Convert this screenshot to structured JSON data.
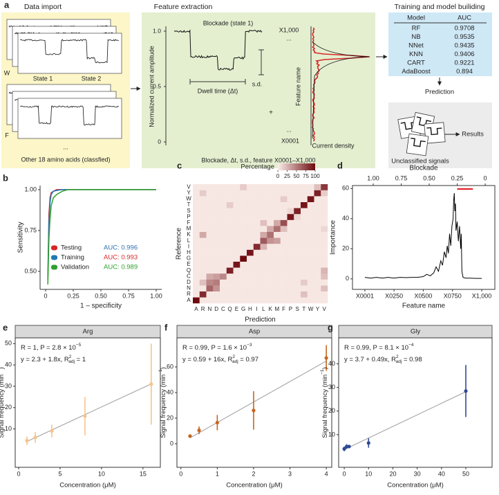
{
  "panel_a": {
    "label": "a",
    "data_import": {
      "title": "Data import",
      "state_1": "State 1",
      "state_2": "State 2",
      "w": "W",
      "f": "F",
      "ellipsis": "...",
      "other": "Other 18 amino acids (classfied)"
    },
    "feature_extraction": {
      "title": "Feature extraction",
      "y_label": "Normalized current amplitude",
      "yticks": [
        "1.0",
        "0.5",
        "0"
      ],
      "blockade": "Blockade (state 1)",
      "sd": "s.d.",
      "dwell": "Dwell time (Δt)",
      "plus": "+",
      "x_top": "X1,000",
      "dots_top": "...",
      "feature_name": "Feature name",
      "dots_bottom": "...",
      "x_bottom": "X0001",
      "current_density": "Current density",
      "caption": "Blockade, Δt, s.d., feature X0001–X1,000"
    },
    "training": {
      "title": "Training and model builiding",
      "table": {
        "header": [
          "Model",
          "AUC"
        ],
        "rows": [
          [
            "RF",
            "0.9708"
          ],
          [
            "NB",
            "0.9535"
          ],
          [
            "NNet",
            "0.9435"
          ],
          [
            "KNN",
            "0.9406"
          ],
          [
            "CART",
            "0.9221"
          ],
          [
            "AdaBoost",
            "0.894"
          ]
        ]
      },
      "prediction": "Prediction",
      "unclassified": "Unclassified signals",
      "results": "Results"
    }
  },
  "chart_data": [
    {
      "type": "line",
      "label": "b",
      "xlabel": "1 – specificity",
      "ylabel": "Sensitivity",
      "x": [
        0.02,
        0.03,
        0.04,
        0.05,
        0.07,
        0.1,
        0.15,
        0.2,
        0.25,
        1.0
      ],
      "series": [
        {
          "name": "Testing",
          "color": "#d62728",
          "auc": "AUC: 0.996",
          "auc_color": "#2f6fb0",
          "values": [
            0.45,
            0.85,
            0.95,
            0.98,
            0.99,
            1,
            1,
            1,
            1,
            1
          ]
        },
        {
          "name": "Training",
          "color": "#1f77b4",
          "auc": "AUC: 0.993",
          "auc_color": "#d62728",
          "values": [
            0.45,
            0.8,
            0.92,
            0.97,
            0.99,
            0.995,
            1,
            1,
            1,
            1
          ]
        },
        {
          "name": "Validation",
          "color": "#2ca02c",
          "auc": "AUC: 0.989",
          "auc_color": "#2ca02c",
          "values": [
            0.42,
            0.7,
            0.82,
            0.9,
            0.95,
            0.97,
            0.99,
            1,
            1,
            1
          ]
        }
      ],
      "xlim": [
        -0.05,
        1.05
      ],
      "ylim": [
        0.39,
        1.025
      ],
      "xticks": [
        0,
        0.25,
        {
          "value": 0.5,
          "label": "0.50"
        },
        0.75,
        {
          "value": 1,
          "label": "1.00"
        }
      ],
      "yticks": [
        {
          "value": 0.5,
          "label": "0.50"
        },
        0.75,
        {
          "value": 1,
          "label": "1.00"
        }
      ]
    },
    {
      "type": "heatmap",
      "label": "c",
      "xlabel": "Prediction",
      "ylabel": "Reference",
      "colorbar_label": "Percentage",
      "categories": [
        "A",
        "R",
        "N",
        "D",
        "C",
        "Q",
        "E",
        "G",
        "H",
        "I",
        "L",
        "K",
        "M",
        "F",
        "P",
        "S",
        "T",
        "W",
        "Y",
        "V"
      ],
      "values": [
        [
          100,
          3,
          3,
          3,
          3,
          3,
          3,
          3,
          3,
          3,
          3,
          3,
          3,
          3,
          3,
          3,
          3,
          3,
          3,
          3
        ],
        [
          3,
          85,
          3,
          3,
          3,
          3,
          3,
          3,
          3,
          3,
          3,
          3,
          3,
          3,
          3,
          3,
          20,
          3,
          3,
          3
        ],
        [
          3,
          3,
          60,
          40,
          3,
          3,
          3,
          3,
          3,
          3,
          3,
          3,
          3,
          3,
          3,
          3,
          3,
          3,
          3,
          20
        ],
        [
          3,
          20,
          45,
          50,
          3,
          3,
          3,
          3,
          3,
          3,
          3,
          3,
          3,
          3,
          3,
          3,
          15,
          3,
          3,
          3
        ],
        [
          3,
          3,
          30,
          35,
          45,
          3,
          3,
          3,
          3,
          3,
          3,
          3,
          3,
          3,
          3,
          3,
          3,
          3,
          3,
          20
        ],
        [
          3,
          3,
          3,
          3,
          3,
          90,
          3,
          3,
          3,
          3,
          3,
          3,
          3,
          3,
          3,
          3,
          3,
          3,
          3,
          25
        ],
        [
          3,
          3,
          3,
          3,
          3,
          3,
          95,
          3,
          3,
          3,
          3,
          3,
          3,
          3,
          3,
          3,
          3,
          3,
          3,
          3
        ],
        [
          3,
          3,
          3,
          3,
          3,
          3,
          3,
          100,
          3,
          3,
          3,
          3,
          3,
          3,
          3,
          3,
          3,
          3,
          3,
          3
        ],
        [
          3,
          3,
          3,
          3,
          3,
          3,
          3,
          3,
          95,
          3,
          3,
          3,
          3,
          3,
          3,
          3,
          3,
          3,
          3,
          3
        ],
        [
          3,
          3,
          3,
          3,
          3,
          3,
          3,
          3,
          3,
          85,
          25,
          3,
          3,
          3,
          3,
          3,
          3,
          3,
          3,
          3
        ],
        [
          3,
          3,
          3,
          3,
          3,
          3,
          3,
          3,
          3,
          3,
          65,
          40,
          35,
          3,
          3,
          3,
          3,
          3,
          3,
          3
        ],
        [
          3,
          30,
          3,
          3,
          3,
          3,
          3,
          3,
          3,
          3,
          30,
          55,
          3,
          3,
          3,
          3,
          3,
          3,
          3,
          3
        ],
        [
          3,
          3,
          3,
          3,
          3,
          3,
          3,
          3,
          3,
          3,
          3,
          30,
          55,
          20,
          3,
          3,
          3,
          3,
          3,
          10
        ],
        [
          3,
          3,
          3,
          3,
          3,
          3,
          3,
          3,
          3,
          3,
          20,
          3,
          30,
          70,
          3,
          3,
          3,
          3,
          3,
          3
        ],
        [
          3,
          3,
          3,
          3,
          3,
          3,
          3,
          3,
          3,
          3,
          3,
          3,
          3,
          3,
          95,
          10,
          3,
          3,
          3,
          3
        ],
        [
          3,
          3,
          3,
          3,
          3,
          3,
          3,
          3,
          3,
          3,
          3,
          3,
          3,
          3,
          10,
          90,
          3,
          3,
          3,
          3
        ],
        [
          3,
          3,
          3,
          3,
          3,
          15,
          3,
          3,
          3,
          3,
          3,
          3,
          3,
          3,
          3,
          3,
          95,
          3,
          3,
          3
        ],
        [
          3,
          3,
          3,
          3,
          3,
          3,
          3,
          3,
          3,
          3,
          3,
          3,
          3,
          15,
          3,
          3,
          3,
          95,
          3,
          3
        ],
        [
          3,
          15,
          3,
          3,
          3,
          3,
          3,
          3,
          3,
          3,
          3,
          3,
          3,
          3,
          3,
          3,
          3,
          3,
          90,
          15
        ],
        [
          3,
          3,
          3,
          3,
          3,
          3,
          3,
          15,
          3,
          3,
          3,
          3,
          3,
          3,
          3,
          3,
          3,
          3,
          20,
          80
        ]
      ],
      "clim": [
        0,
        100
      ],
      "colorbar_ticks": [
        0,
        25,
        50,
        75,
        100
      ],
      "colors": [
        "#fbeeea",
        "#6e0a0f"
      ]
    },
    {
      "type": "line",
      "label": "d",
      "frame": true,
      "xlabel": "Feature name",
      "ylabel": "Importance",
      "x2label": "Blockade",
      "color": "#000000",
      "x": [
        1,
        50,
        100,
        150,
        200,
        250,
        300,
        350,
        400,
        450,
        500,
        530,
        560,
        590,
        610,
        630,
        650,
        665,
        680,
        695,
        705,
        715,
        725,
        735,
        745,
        755,
        760,
        765,
        770,
        775,
        780,
        790,
        800,
        810,
        815,
        820,
        825,
        830,
        840,
        860,
        900,
        950,
        1000
      ],
      "values": [
        1,
        0.5,
        1,
        0.5,
        1,
        0.5,
        1,
        0.8,
        1,
        1,
        1.5,
        3,
        2,
        4,
        8,
        5,
        12,
        9,
        18,
        14,
        22,
        17,
        30,
        22,
        35,
        40,
        52,
        57,
        45,
        50,
        32,
        38,
        25,
        35,
        28,
        20,
        30,
        5,
        1,
        0.5,
        0.5,
        0.3,
        0.3
      ],
      "xlim": [
        -105,
        1112
      ],
      "ylim": [
        -7,
        62
      ],
      "xticks": [
        {
          "value": 1,
          "label": "X0001"
        },
        {
          "value": 250,
          "label": "X0250"
        },
        {
          "value": 500,
          "label": "X0500"
        },
        {
          "value": 750,
          "label": "X0750"
        },
        {
          "value": 1000,
          "label": "X1,000"
        }
      ],
      "yticks": [
        0,
        20,
        40,
        60
      ],
      "x2lim": [
        1.185,
        -0.086
      ],
      "x2ticks": [
        {
          "value": 1,
          "label": "1.00"
        },
        0.75,
        {
          "value": 0.5,
          "label": "0.50"
        },
        0.25,
        0
      ],
      "highlight": {
        "x2": [
          0.25,
          0.11
        ],
        "color": "#e41a1c"
      }
    },
    {
      "type": "scatter",
      "label": "e",
      "panel_title": "Arg",
      "stats": [
        {
          "text": "R = 1, P = 2.8 × 10",
          "sup": "−5"
        },
        {
          "text": "y = 2.3 + 1.8x, R",
          "sup": "2",
          "sub": "adj",
          "tail": " = 1"
        }
      ],
      "ylabel": {
        "text": "Signal frequency (min",
        "sup": "−1",
        "tail": ")"
      },
      "xlabel": "Concentration (μM)",
      "x": [
        1,
        2,
        4,
        8,
        16
      ],
      "values": [
        4.5,
        6,
        9,
        16,
        31
      ],
      "errors": [
        2,
        2.5,
        3,
        9,
        19
      ],
      "fit": {
        "intercept": 2.3,
        "slope": 1.8
      },
      "color": "#f5c48a",
      "xlim": [
        -0.42,
        17.1
      ],
      "ylim": [
        -8,
        52.7
      ],
      "xticks": [
        0,
        5,
        10,
        15
      ],
      "yticks": [
        10,
        20,
        30,
        40,
        50
      ]
    },
    {
      "type": "scatter",
      "label": "f",
      "panel_title": "Asp",
      "stats": [
        {
          "text": "R = 0.99, P = 1.6 × 10",
          "sup": "−3"
        },
        {
          "text": "y = 0.59 + 16x, R",
          "sup": "2",
          "sub": "adj",
          "tail": " = 0.97"
        }
      ],
      "ylabel": {
        "text": "Signal frequency (min",
        "sup": "−1",
        "tail": ")"
      },
      "xlabel": "Concentration (μM)",
      "x": [
        0.25,
        0.5,
        1,
        2,
        4
      ],
      "values": [
        6,
        10.5,
        16.5,
        26,
        67
      ],
      "errors": [
        1,
        3,
        6,
        15,
        10
      ],
      "fit": {
        "intercept": 0.59,
        "slope": 16
      },
      "color": "#c8651b",
      "xlim": [
        -0.11,
        4.15
      ],
      "ylim": [
        -18.4,
        82.7
      ],
      "xticks": [
        0,
        1,
        2,
        3,
        4
      ],
      "yticks": [
        0,
        20,
        40,
        60
      ]
    },
    {
      "type": "scatter",
      "label": "g",
      "panel_title": "Gly",
      "stats": [
        {
          "text": "R = 0.99, P = 8.1 × 10",
          "sup": "−4"
        },
        {
          "text": "y = 3.7 + 0.49x, R",
          "sup": "2",
          "sub": "adj",
          "tail": " = 0.98"
        }
      ],
      "ylabel": {
        "text": "Signal frequency (min",
        "sup": "−1",
        "tail": ")"
      },
      "xlabel": "Concentration (μM)",
      "x": [
        0,
        1,
        2,
        10,
        50
      ],
      "values": [
        4,
        5,
        5,
        6.5,
        28.5
      ],
      "errors": [
        1,
        1,
        0.5,
        2,
        11
      ],
      "fit": {
        "intercept": 3.7,
        "slope": 0.49
      },
      "color": "#2e4a94",
      "xlim": [
        -2.3,
        60.8
      ],
      "ylim": [
        -3.8,
        51
      ],
      "xticks": [
        0,
        10,
        20,
        30,
        40,
        50
      ],
      "yticks": [
        10,
        20,
        30,
        40
      ]
    }
  ]
}
